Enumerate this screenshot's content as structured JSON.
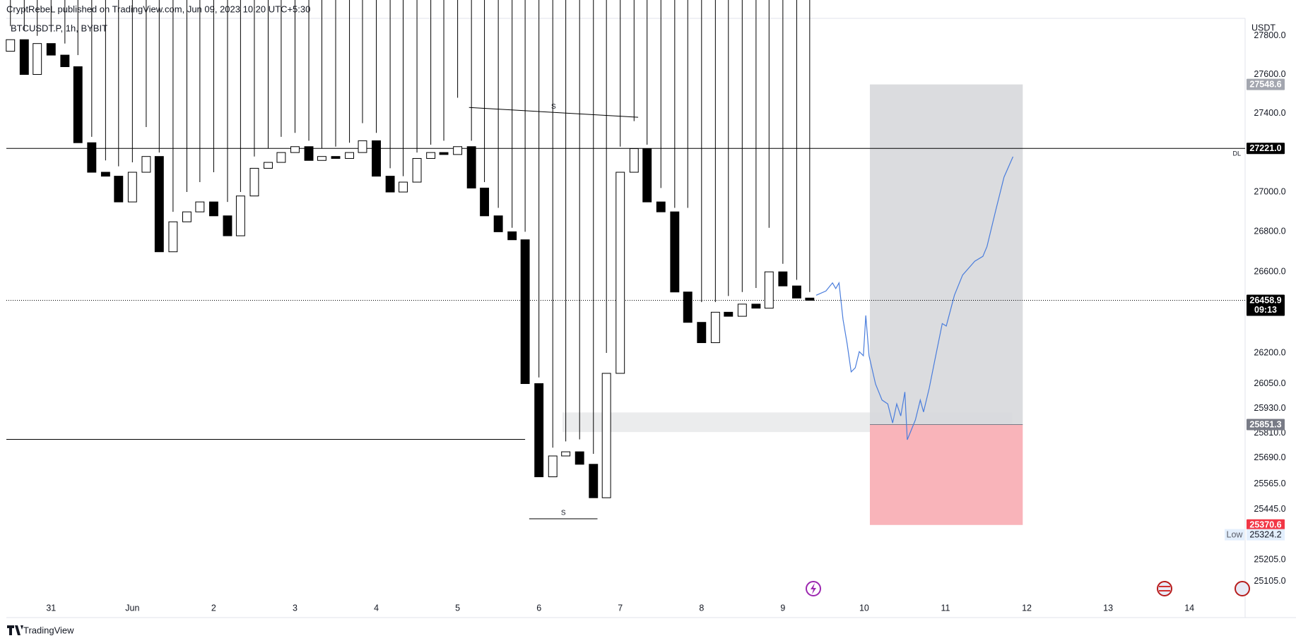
{
  "header": {
    "published": "CryptRebeL published on TradingView.com, Jun 09, 2023 10:20 UTC+5:30"
  },
  "footer": {
    "brand": "TradingView"
  },
  "chart_data": {
    "type": "candlestick",
    "symbol": "BTCUSDT.P, 1h, BYBIT",
    "currency": "USDT",
    "log_scale": true,
    "grid": false,
    "up_color": "#ffffff",
    "down_color": "#000000",
    "wick_color": "#000000",
    "x": [
      -0.5,
      -0.33,
      -0.17,
      0,
      0.17,
      0.33,
      0.5,
      0.67,
      0.83,
      1,
      1.17,
      1.33,
      1.5,
      1.67,
      1.83,
      2,
      2.17,
      2.33,
      2.5,
      2.67,
      2.83,
      3,
      3.17,
      3.33,
      3.5,
      3.67,
      3.83,
      4,
      4.17,
      4.33,
      4.5,
      4.67,
      4.83,
      5,
      5.17,
      5.33,
      5.5,
      5.67,
      5.83,
      6,
      6.17,
      6.33,
      6.5,
      6.67,
      6.83,
      7,
      7.17,
      7.33,
      7.5,
      7.67,
      7.83,
      8,
      8.17,
      8.33,
      8.5,
      8.67,
      8.83,
      9,
      9.17,
      9.33
    ],
    "open": [
      27720,
      27780,
      27600,
      27760,
      27700,
      27640,
      27250,
      27100,
      27080,
      26950,
      27100,
      27180,
      26700,
      26850,
      26900,
      26950,
      26880,
      26780,
      26980,
      27120,
      27150,
      27200,
      27230,
      27160,
      27180,
      27170,
      27200,
      27260,
      27080,
      27000,
      27050,
      27170,
      27200,
      27190,
      27230,
      27020,
      26880,
      26800,
      26760,
      26050,
      25600,
      25700,
      25720,
      25660,
      25500,
      26100,
      27100,
      27220,
      26950,
      26900,
      26500,
      26350,
      26250,
      26400,
      26380,
      26440,
      26420,
      26600,
      26530,
      26470
    ],
    "high": [
      27850,
      27830,
      27800,
      27820,
      27760,
      27700,
      27280,
      27160,
      27130,
      27150,
      27330,
      27200,
      26900,
      27000,
      27050,
      27100,
      26950,
      27000,
      27180,
      27220,
      27280,
      27300,
      27260,
      27220,
      27230,
      27250,
      27350,
      27300,
      27120,
      27080,
      27200,
      27240,
      27260,
      27480,
      27260,
      27050,
      26920,
      26820,
      26800,
      26080,
      25740,
      25770,
      25780,
      25710,
      26200,
      27230,
      27360,
      27240,
      27020,
      26920,
      26920,
      26450,
      26450,
      26480,
      26500,
      26520,
      26820,
      26640,
      26560,
      26500
    ],
    "low": {
      "name": "Low",
      "value": 25324.2
    },
    "close": [
      27780,
      27600,
      27760,
      27700,
      27640,
      27250,
      27100,
      27080,
      26950,
      27100,
      27180,
      26700,
      26850,
      26900,
      26950,
      26880,
      26780,
      26980,
      27120,
      27150,
      27200,
      27230,
      27160,
      27180,
      27170,
      27200,
      27260,
      27080,
      27000,
      27050,
      27170,
      27200,
      27190,
      27230,
      27020,
      26880,
      26800,
      26760,
      26050,
      25600,
      25700,
      25720,
      25660,
      25500,
      26100,
      27100,
      27220,
      26950,
      26900,
      26500,
      26350,
      26250,
      26400,
      26380,
      26440,
      26420,
      26600,
      26530,
      26470,
      26458.9
    ],
    "xlim": [
      -0.55,
      14.685
    ],
    "xticks": [
      {
        "value": 0,
        "label": "31"
      },
      {
        "value": 1,
        "label": "Jun"
      },
      2,
      3,
      4,
      5,
      6,
      7,
      8,
      9,
      10,
      11,
      12,
      13,
      14
    ],
    "ylim": [
      24935,
      27891
    ],
    "yticks": [
      {
        "value": 27800,
        "label": "27800.0"
      },
      {
        "value": 27600,
        "label": "27600.0"
      },
      {
        "value": 27400,
        "label": "27400.0"
      },
      {
        "value": 27000,
        "label": "27000.0"
      },
      {
        "value": 26800,
        "label": "26800.0"
      },
      {
        "value": 26600,
        "label": "26600.0"
      },
      {
        "value": 26200,
        "label": "26200.0"
      },
      {
        "value": 26050,
        "label": "26050.0"
      },
      {
        "value": 25930,
        "label": "25930.0"
      },
      {
        "value": 25810,
        "label": "25810.0"
      },
      {
        "value": 25690,
        "label": "25690.0"
      },
      {
        "value": 25565,
        "label": "25565.0"
      },
      {
        "value": 25445,
        "label": "25445.0"
      },
      {
        "value": 25205,
        "label": "25205.0"
      },
      {
        "value": 25105,
        "label": "25105.0"
      }
    ],
    "level": {
      "value": 27221,
      "label": "27221.0",
      "tag": "DL"
    },
    "current_price": {
      "value": 26458.9,
      "countdown": "09:13"
    },
    "zone": {
      "x0": 6.29,
      "x1": 11.82,
      "top": 25910,
      "bottom": 25815,
      "color": "#ebeced"
    },
    "position": {
      "x0": 10.07,
      "x1": 11.95,
      "target": 27548.6,
      "entry": 25851.3,
      "stop": 25370.6,
      "profit_color": "#d7d8db",
      "loss_color": "#f9b4ba"
    },
    "segments": [
      {
        "x": [
          -0.55,
          5.83
        ],
        "y": [
          25780,
          25780
        ]
      },
      {
        "x": [
          5.14,
          7.22
        ],
        "y": [
          27430,
          27380
        ],
        "label": "S"
      },
      {
        "x": [
          5.88,
          6.72
        ],
        "y": [
          25400,
          25400
        ],
        "label": "S"
      }
    ],
    "projection": {
      "color": "#4a7ddc",
      "x": [
        9.41,
        9.53,
        9.61,
        9.65,
        9.69,
        9.74,
        9.79,
        9.84,
        9.89,
        9.94,
        9.99,
        10.02,
        10.06,
        10.14,
        10.22,
        10.29,
        10.35,
        10.4,
        10.45,
        10.5,
        10.53,
        10.57,
        10.63,
        10.69,
        10.73,
        10.8,
        10.87,
        10.96,
        11.01,
        11.11,
        11.21,
        11.36,
        11.46,
        11.51,
        11.62,
        11.72,
        11.83
      ],
      "y": [
        26484,
        26505,
        26545,
        26517,
        26545,
        26364,
        26245,
        26107,
        26127,
        26206,
        26186,
        26384,
        26186,
        26048,
        25970,
        25951,
        25859,
        25951,
        25893,
        26009,
        25778,
        25816,
        25874,
        25970,
        25912,
        26028,
        26166,
        26344,
        26332,
        26484,
        26584,
        26653,
        26677,
        26726,
        26911,
        27075,
        27179
      ]
    }
  }
}
